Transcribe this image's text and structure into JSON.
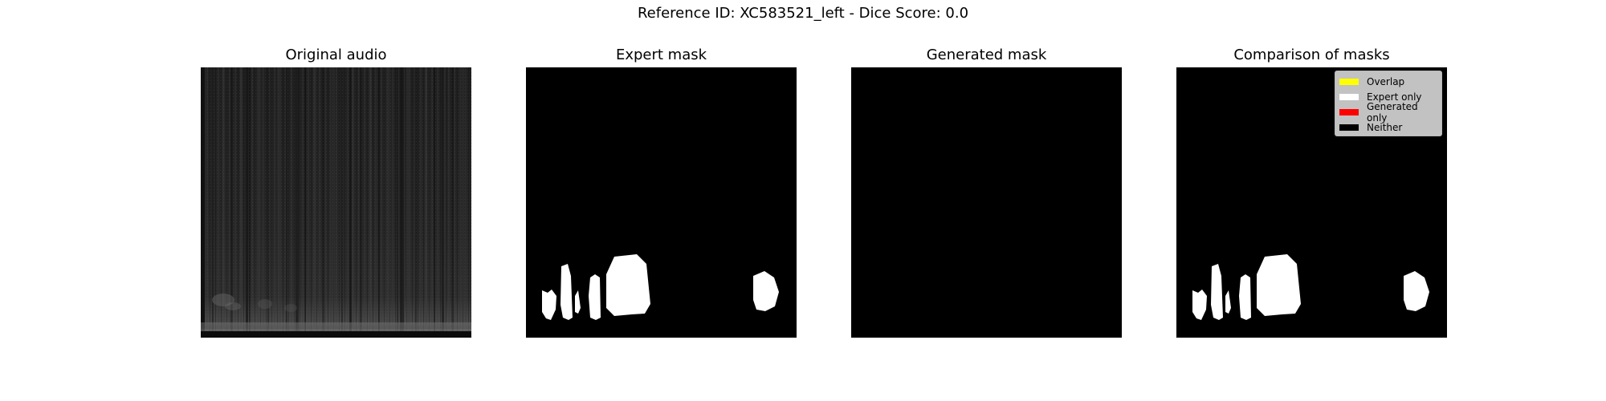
{
  "figure": {
    "suptitle": "Reference ID: XC583521_left - Dice Score: 0.0"
  },
  "panels": [
    {
      "title": "Original audio"
    },
    {
      "title": "Expert mask"
    },
    {
      "title": "Generated mask"
    },
    {
      "title": "Comparison of masks"
    }
  ],
  "legend": {
    "items": [
      {
        "label": "Overlap",
        "color": "#ffff00"
      },
      {
        "label": "Expert only",
        "color": "#ffffff"
      },
      {
        "label": "Generated only",
        "color": "#ff0000"
      },
      {
        "label": "Neither",
        "color": "#000000"
      }
    ]
  },
  "colors": {
    "mask_background": "#000000",
    "mask_foreground": "#ffffff"
  }
}
